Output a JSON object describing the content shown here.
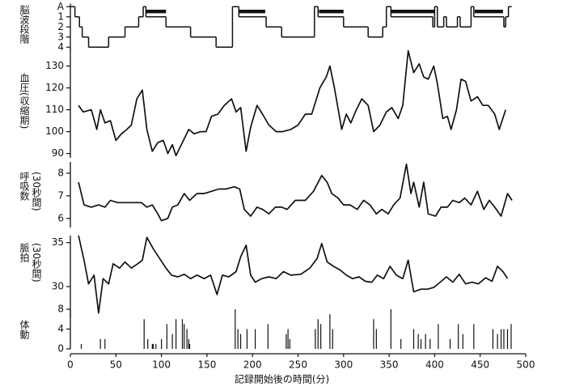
{
  "chart_data": [
    {
      "type": "step",
      "y_label": [
        "脳波段階"
      ],
      "x": [
        0,
        5,
        10,
        13,
        20,
        42,
        60,
        75,
        80,
        83,
        105,
        132,
        160,
        178,
        185,
        215,
        232,
        268,
        272,
        300,
        327,
        343,
        347,
        352,
        398,
        400,
        403,
        410,
        413,
        425,
        428,
        440,
        443,
        476,
        478,
        481
      ],
      "values": [
        0,
        1,
        2,
        3,
        4,
        3,
        2,
        1,
        0,
        1,
        2,
        3,
        4,
        0,
        1,
        2,
        3,
        0,
        1,
        2,
        3,
        2,
        0,
        1,
        2,
        0,
        2,
        1,
        2,
        1,
        2,
        0,
        1,
        2,
        1,
        0
      ],
      "rem_periods": [
        [
          83,
          105
        ],
        [
          185,
          214
        ],
        [
          273,
          300
        ],
        [
          352,
          400
        ],
        [
          444,
          475
        ]
      ],
      "xlim": [
        0,
        500
      ],
      "ylim": [
        4.3,
        -0.3
      ],
      "yticks": [
        {
          "value": 0,
          "label": "A"
        },
        1,
        2,
        3,
        4
      ],
      "color": "#111111"
    },
    {
      "type": "line",
      "y_label": [
        "血圧(収縮期)"
      ],
      "x": [
        9,
        14,
        23,
        29,
        33,
        38,
        44,
        50,
        56,
        62,
        67,
        73,
        79,
        84,
        90,
        96,
        102,
        107,
        112,
        116,
        123,
        130,
        136,
        143,
        149,
        155,
        162,
        169,
        177,
        182,
        187,
        193,
        198,
        205,
        211,
        218,
        226,
        233,
        242,
        250,
        258,
        265,
        274,
        281,
        285,
        290,
        298,
        303,
        308,
        313,
        320,
        327,
        333,
        340,
        347,
        353,
        360,
        365,
        371,
        377,
        383,
        388,
        393,
        399,
        403,
        409,
        414,
        418,
        424,
        429,
        434,
        440,
        447,
        453,
        459,
        466,
        471,
        478
      ],
      "values": [
        112,
        109,
        110,
        101,
        110,
        104,
        105,
        96,
        99,
        101,
        103,
        115,
        119,
        101,
        91,
        95,
        96,
        90,
        94,
        89,
        95,
        101,
        99,
        100,
        100,
        107,
        108,
        112,
        115,
        109,
        111,
        91,
        102,
        112,
        108,
        103,
        100,
        100,
        101,
        103,
        108,
        108,
        120,
        125,
        130,
        120,
        101,
        108,
        104,
        109,
        115,
        112,
        100,
        103,
        109,
        111,
        106,
        112,
        137,
        127,
        131,
        125,
        124,
        130,
        122,
        106,
        107,
        101,
        110,
        124,
        123,
        114,
        116,
        112,
        112,
        108,
        101,
        110
      ],
      "xlim": [
        0,
        500
      ],
      "ylim": [
        88,
        138
      ],
      "yticks": [
        90,
        100,
        110,
        120,
        130
      ],
      "color": "#111111"
    },
    {
      "type": "line",
      "y_label": [
        "呼吸数",
        "(30秒間)"
      ],
      "x": [
        9,
        15,
        23,
        31,
        38,
        44,
        52,
        60,
        69,
        78,
        84,
        90,
        96,
        100,
        107,
        112,
        118,
        125,
        131,
        139,
        147,
        155,
        163,
        171,
        180,
        186,
        191,
        198,
        205,
        211,
        218,
        225,
        232,
        238,
        247,
        258,
        267,
        276,
        282,
        287,
        294,
        300,
        307,
        315,
        322,
        329,
        336,
        342,
        349,
        355,
        362,
        369,
        374,
        377,
        383,
        388,
        393,
        401,
        407,
        414,
        420,
        427,
        433,
        440,
        447,
        454,
        460,
        466,
        473,
        480,
        485
      ],
      "values": [
        7.6,
        6.6,
        6.5,
        6.6,
        6.5,
        6.8,
        6.7,
        6.7,
        6.7,
        6.7,
        6.5,
        6.6,
        6.2,
        5.9,
        6.0,
        6.5,
        6.6,
        7.1,
        6.8,
        7.1,
        7.1,
        7.2,
        7.3,
        7.3,
        7.4,
        7.3,
        6.4,
        6.1,
        6.5,
        6.4,
        6.2,
        6.5,
        6.5,
        6.4,
        6.8,
        6.8,
        7.2,
        7.9,
        7.6,
        7.1,
        6.9,
        6.6,
        6.6,
        6.4,
        6.8,
        6.6,
        6.2,
        6.4,
        6.2,
        6.6,
        6.9,
        8.4,
        7.1,
        7.6,
        6.5,
        7.6,
        6.2,
        6.1,
        6.5,
        6.5,
        6.8,
        6.7,
        6.9,
        6.6,
        7.2,
        6.4,
        6.8,
        6.5,
        6.1,
        7.1,
        6.8
      ],
      "xlim": [
        0,
        500
      ],
      "ylim": [
        5.6,
        8.5
      ],
      "yticks": [
        6,
        7,
        8
      ],
      "color": "#111111"
    },
    {
      "type": "line",
      "y_label": [
        "脈拍",
        "(30秒間)"
      ],
      "x": [
        9,
        15,
        20,
        26,
        31,
        36,
        42,
        47,
        54,
        60,
        67,
        74,
        79,
        84,
        91,
        98,
        105,
        111,
        118,
        125,
        132,
        139,
        147,
        154,
        161,
        167,
        174,
        182,
        187,
        193,
        198,
        203,
        210,
        218,
        226,
        234,
        242,
        253,
        263,
        271,
        276,
        282,
        289,
        296,
        303,
        310,
        317,
        324,
        331,
        337,
        344,
        351,
        358,
        365,
        371,
        377,
        385,
        392,
        399,
        406,
        413,
        420,
        427,
        434,
        441,
        448,
        456,
        463,
        469,
        475,
        480
      ],
      "values": [
        35.8,
        33,
        30.3,
        31.3,
        27,
        30.9,
        30.3,
        32.6,
        32.1,
        32.8,
        32.1,
        32.6,
        33,
        35.6,
        34.3,
        33.2,
        32.1,
        31.3,
        31.1,
        31.4,
        30.9,
        31.3,
        30.9,
        31.3,
        29.1,
        31.3,
        31.1,
        31.7,
        33.4,
        34.7,
        31.3,
        30.5,
        30.9,
        31.1,
        30.9,
        31.7,
        31.3,
        31.4,
        32.1,
        33.2,
        34.9,
        32.8,
        32.3,
        31.9,
        31.3,
        30.9,
        31.1,
        30.6,
        30.5,
        31.3,
        30.9,
        32.3,
        31.3,
        30.9,
        33,
        29.4,
        29.7,
        29.7,
        29.9,
        30.5,
        31.1,
        30.5,
        31.4,
        30.3,
        30.5,
        30.3,
        31,
        30.6,
        32.3,
        31.7,
        30.9
      ],
      "xlim": [
        0,
        500
      ],
      "ylim": [
        26.5,
        35.8
      ],
      "yticks": [
        30,
        35
      ],
      "color": "#111111"
    },
    {
      "type": "spikes",
      "y_label": [
        "体動"
      ],
      "x_label": "記録開始後の時間(分)",
      "x": [
        12,
        33,
        38,
        81,
        85,
        90,
        91,
        94,
        100,
        106,
        112,
        116,
        123,
        125,
        128,
        130,
        131,
        181,
        184,
        187,
        194,
        203,
        217,
        237,
        239,
        241,
        269,
        272,
        275,
        285,
        288,
        333,
        336,
        352,
        363,
        377,
        382,
        385,
        390,
        395,
        404,
        417,
        426,
        431,
        443,
        464,
        469,
        473,
        476,
        480,
        484
      ],
      "values": [
        1,
        2,
        2,
        6,
        2,
        1,
        1,
        1,
        2,
        5,
        3,
        6,
        6,
        5,
        4,
        2,
        1,
        8,
        4,
        3,
        4,
        4,
        5,
        3,
        4,
        2,
        4,
        6,
        5,
        7,
        4,
        6,
        4,
        8,
        2,
        4,
        3,
        2,
        3,
        2,
        5,
        2,
        5,
        3,
        5,
        4,
        3,
        4,
        4,
        4,
        5
      ],
      "xlim": [
        0,
        500
      ],
      "ylim": [
        0,
        8
      ],
      "yticks": [
        0,
        4,
        8
      ],
      "xticks": [
        0,
        50,
        100,
        150,
        200,
        250,
        300,
        350,
        400,
        450,
        500
      ],
      "color": "#111111"
    }
  ]
}
